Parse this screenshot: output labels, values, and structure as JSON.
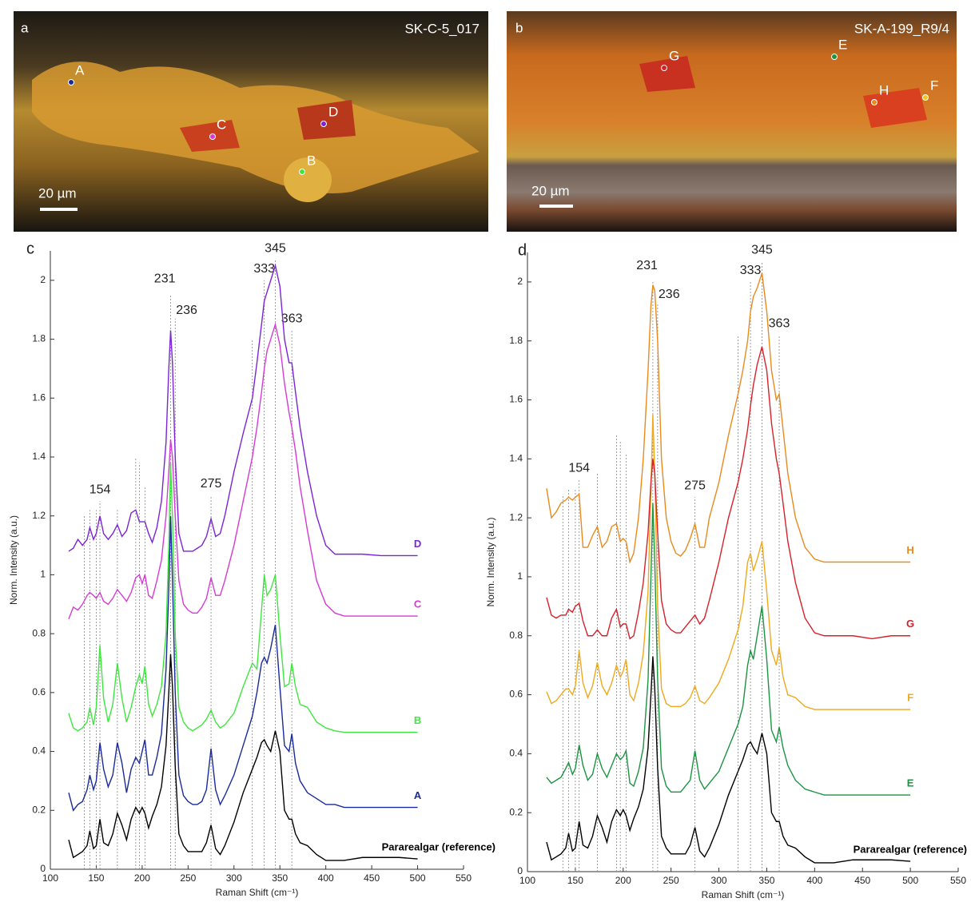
{
  "micrographs": [
    {
      "panel": "a",
      "sample": "SK-C-5_017",
      "scale": "20 µm",
      "points": [
        "A",
        "B",
        "C",
        "D"
      ]
    },
    {
      "panel": "b",
      "sample": "SK-A-199_R9/4",
      "scale": "20 µm",
      "points": [
        "G",
        "E",
        "H",
        "F"
      ]
    }
  ],
  "chart_data": [
    {
      "type": "line",
      "panel": "c",
      "xlabel": "Raman Shift (cm⁻¹)",
      "ylabel": "Norm. Intensity (a.u.)",
      "xlim": [
        100,
        550
      ],
      "ylim": [
        0,
        2.1
      ],
      "xticks": [
        100,
        150,
        200,
        250,
        300,
        350,
        400,
        450,
        500,
        550
      ],
      "yticks": [
        0,
        0.2,
        0.4,
        0.6,
        0.8,
        1,
        1.2,
        1.4,
        1.6,
        1.8,
        2
      ],
      "peak_lines": [
        {
          "x": 137,
          "top": 1.2
        },
        {
          "x": 143,
          "top": 1.22
        },
        {
          "x": 150,
          "top": 1.22
        },
        {
          "x": 154,
          "top": 1.25
        },
        {
          "x": 173,
          "top": 1.22
        },
        {
          "x": 193,
          "top": 1.4
        },
        {
          "x": 197,
          "top": 1.38
        },
        {
          "x": 203,
          "top": 1.3
        },
        {
          "x": 231,
          "top": 1.95
        },
        {
          "x": 236,
          "top": 1.87
        },
        {
          "x": 275,
          "top": 1.27
        },
        {
          "x": 320,
          "top": 1.8
        },
        {
          "x": 333,
          "top": 2.0
        },
        {
          "x": 345,
          "top": 2.07
        },
        {
          "x": 363,
          "top": 1.83
        }
      ],
      "peak_labels": [
        154,
        231,
        236,
        275,
        333,
        345,
        363
      ],
      "x": [
        120,
        125,
        130,
        135,
        140,
        143,
        147,
        150,
        154,
        158,
        163,
        168,
        173,
        178,
        183,
        188,
        193,
        197,
        200,
        203,
        207,
        211,
        216,
        221,
        226,
        229,
        231,
        233,
        236,
        240,
        245,
        250,
        255,
        260,
        265,
        270,
        275,
        280,
        285,
        290,
        300,
        310,
        320,
        325,
        330,
        333,
        336,
        340,
        345,
        350,
        355,
        360,
        363,
        367,
        372,
        380,
        390,
        400,
        410,
        420,
        440,
        460,
        480,
        500
      ],
      "series": [
        {
          "name": "Pararealgar (reference)",
          "color": "#000000",
          "values": [
            0.1,
            0.04,
            0.05,
            0.06,
            0.08,
            0.13,
            0.07,
            0.08,
            0.17,
            0.09,
            0.08,
            0.12,
            0.19,
            0.15,
            0.1,
            0.17,
            0.21,
            0.19,
            0.21,
            0.19,
            0.14,
            0.18,
            0.22,
            0.28,
            0.42,
            0.6,
            0.73,
            0.62,
            0.35,
            0.12,
            0.08,
            0.06,
            0.06,
            0.06,
            0.06,
            0.09,
            0.15,
            0.07,
            0.05,
            0.08,
            0.16,
            0.26,
            0.34,
            0.38,
            0.43,
            0.44,
            0.42,
            0.4,
            0.47,
            0.4,
            0.2,
            0.17,
            0.17,
            0.12,
            0.09,
            0.08,
            0.05,
            0.03,
            0.03,
            0.03,
            0.04,
            0.04,
            0.04,
            0.035
          ]
        },
        {
          "name": "A",
          "color": "#1a2a99",
          "values": [
            0.26,
            0.2,
            0.22,
            0.23,
            0.27,
            0.32,
            0.27,
            0.3,
            0.43,
            0.34,
            0.28,
            0.32,
            0.43,
            0.36,
            0.26,
            0.34,
            0.38,
            0.36,
            0.4,
            0.44,
            0.32,
            0.32,
            0.38,
            0.46,
            0.68,
            0.95,
            1.2,
            0.98,
            0.6,
            0.32,
            0.25,
            0.23,
            0.22,
            0.22,
            0.23,
            0.27,
            0.41,
            0.27,
            0.22,
            0.25,
            0.32,
            0.42,
            0.52,
            0.6,
            0.7,
            0.72,
            0.7,
            0.75,
            0.83,
            0.62,
            0.42,
            0.4,
            0.46,
            0.36,
            0.3,
            0.26,
            0.24,
            0.22,
            0.22,
            0.21,
            0.21,
            0.21,
            0.21,
            0.21
          ]
        },
        {
          "name": "B",
          "color": "#3ee63e",
          "values": [
            0.53,
            0.48,
            0.47,
            0.48,
            0.5,
            0.55,
            0.49,
            0.55,
            0.76,
            0.58,
            0.5,
            0.56,
            0.7,
            0.58,
            0.5,
            0.55,
            0.62,
            0.66,
            0.63,
            0.69,
            0.56,
            0.52,
            0.56,
            0.62,
            0.8,
            1.1,
            1.38,
            1.2,
            0.8,
            0.55,
            0.5,
            0.48,
            0.47,
            0.48,
            0.49,
            0.51,
            0.54,
            0.5,
            0.48,
            0.49,
            0.53,
            0.62,
            0.7,
            0.68,
            0.88,
            1.0,
            0.93,
            0.95,
            1.0,
            0.8,
            0.62,
            0.63,
            0.7,
            0.62,
            0.56,
            0.55,
            0.5,
            0.48,
            0.47,
            0.465,
            0.465,
            0.465,
            0.465,
            0.465
          ]
        },
        {
          "name": "C",
          "color": "#d63ad6",
          "values": [
            0.85,
            0.89,
            0.88,
            0.9,
            0.93,
            0.94,
            0.93,
            0.92,
            0.94,
            0.91,
            0.9,
            0.92,
            0.95,
            0.93,
            0.91,
            0.94,
            0.99,
            1.0,
            0.97,
            1.0,
            0.93,
            0.92,
            0.98,
            1.05,
            1.2,
            1.35,
            1.46,
            1.4,
            1.2,
            0.98,
            0.9,
            0.88,
            0.87,
            0.87,
            0.89,
            0.92,
            0.99,
            0.93,
            0.93,
            0.98,
            1.1,
            1.25,
            1.4,
            1.5,
            1.62,
            1.7,
            1.76,
            1.8,
            1.85,
            1.78,
            1.65,
            1.55,
            1.5,
            1.42,
            1.3,
            1.15,
            0.98,
            0.9,
            0.87,
            0.86,
            0.86,
            0.86,
            0.86,
            0.86
          ]
        },
        {
          "name": "D",
          "color": "#7a24d6",
          "values": [
            1.08,
            1.09,
            1.12,
            1.1,
            1.12,
            1.16,
            1.12,
            1.14,
            1.2,
            1.14,
            1.12,
            1.14,
            1.17,
            1.13,
            1.15,
            1.21,
            1.22,
            1.18,
            1.18,
            1.18,
            1.14,
            1.11,
            1.16,
            1.25,
            1.45,
            1.7,
            1.83,
            1.72,
            1.4,
            1.14,
            1.08,
            1.08,
            1.08,
            1.09,
            1.1,
            1.13,
            1.19,
            1.13,
            1.14,
            1.2,
            1.35,
            1.48,
            1.6,
            1.72,
            1.85,
            1.93,
            1.96,
            2.0,
            2.05,
            1.98,
            1.8,
            1.72,
            1.72,
            1.62,
            1.5,
            1.35,
            1.2,
            1.1,
            1.07,
            1.07,
            1.07,
            1.065,
            1.065,
            1.065
          ]
        }
      ]
    },
    {
      "type": "line",
      "panel": "d",
      "xlabel": "Raman Shift (cm⁻¹)",
      "ylabel": "Norm. Intensity (a.u.)",
      "xlim": [
        100,
        550
      ],
      "ylim": [
        0,
        2.1
      ],
      "xticks": [
        100,
        150,
        200,
        250,
        300,
        350,
        400,
        450,
        500,
        550
      ],
      "yticks": [
        0,
        0.2,
        0.4,
        0.6,
        0.8,
        1,
        1.2,
        1.4,
        1.6,
        1.8,
        2
      ],
      "peak_lines": [
        {
          "x": 137,
          "top": 1.28
        },
        {
          "x": 143,
          "top": 1.3
        },
        {
          "x": 150,
          "top": 1.3
        },
        {
          "x": 154,
          "top": 1.33
        },
        {
          "x": 173,
          "top": 1.35
        },
        {
          "x": 193,
          "top": 1.48
        },
        {
          "x": 197,
          "top": 1.46
        },
        {
          "x": 203,
          "top": 1.42
        },
        {
          "x": 231,
          "top": 2.0
        },
        {
          "x": 236,
          "top": 1.93
        },
        {
          "x": 275,
          "top": 1.27
        },
        {
          "x": 320,
          "top": 1.82
        },
        {
          "x": 333,
          "top": 2.0
        },
        {
          "x": 345,
          "top": 2.07
        },
        {
          "x": 363,
          "top": 1.82
        }
      ],
      "peak_labels": [
        154,
        231,
        236,
        275,
        333,
        345,
        363
      ],
      "x": [
        120,
        125,
        130,
        135,
        140,
        143,
        147,
        150,
        154,
        158,
        163,
        168,
        173,
        178,
        183,
        188,
        193,
        197,
        200,
        203,
        207,
        211,
        216,
        221,
        226,
        229,
        231,
        233,
        236,
        240,
        245,
        250,
        255,
        260,
        265,
        270,
        275,
        280,
        285,
        290,
        300,
        310,
        320,
        325,
        330,
        333,
        336,
        340,
        345,
        350,
        355,
        360,
        363,
        367,
        372,
        380,
        390,
        400,
        410,
        420,
        440,
        460,
        480,
        500
      ],
      "series": [
        {
          "name": "Pararealgar (reference)",
          "color": "#000000",
          "values": [
            0.1,
            0.04,
            0.05,
            0.06,
            0.08,
            0.13,
            0.07,
            0.08,
            0.17,
            0.09,
            0.08,
            0.12,
            0.19,
            0.15,
            0.1,
            0.17,
            0.21,
            0.19,
            0.21,
            0.19,
            0.14,
            0.18,
            0.22,
            0.28,
            0.42,
            0.6,
            0.73,
            0.62,
            0.35,
            0.12,
            0.08,
            0.06,
            0.06,
            0.06,
            0.06,
            0.09,
            0.15,
            0.07,
            0.05,
            0.08,
            0.16,
            0.26,
            0.34,
            0.38,
            0.43,
            0.44,
            0.42,
            0.4,
            0.47,
            0.4,
            0.2,
            0.17,
            0.17,
            0.12,
            0.09,
            0.08,
            0.05,
            0.03,
            0.03,
            0.03,
            0.04,
            0.04,
            0.04,
            0.035
          ]
        },
        {
          "name": "E",
          "color": "#1a9440",
          "values": [
            0.32,
            0.3,
            0.31,
            0.32,
            0.35,
            0.37,
            0.33,
            0.35,
            0.43,
            0.36,
            0.31,
            0.33,
            0.4,
            0.35,
            0.32,
            0.36,
            0.4,
            0.38,
            0.39,
            0.41,
            0.3,
            0.29,
            0.34,
            0.42,
            0.65,
            1.0,
            1.25,
            1.05,
            0.65,
            0.35,
            0.29,
            0.27,
            0.27,
            0.27,
            0.29,
            0.31,
            0.41,
            0.31,
            0.28,
            0.3,
            0.34,
            0.42,
            0.5,
            0.56,
            0.7,
            0.75,
            0.72,
            0.8,
            0.9,
            0.72,
            0.48,
            0.44,
            0.49,
            0.42,
            0.36,
            0.31,
            0.28,
            0.27,
            0.26,
            0.26,
            0.26,
            0.26,
            0.26,
            0.26
          ]
        },
        {
          "name": "F",
          "color": "#f0a81c",
          "values": [
            0.61,
            0.57,
            0.58,
            0.6,
            0.62,
            0.62,
            0.6,
            0.63,
            0.75,
            0.64,
            0.59,
            0.63,
            0.71,
            0.63,
            0.6,
            0.64,
            0.7,
            0.66,
            0.68,
            0.72,
            0.6,
            0.58,
            0.64,
            0.74,
            0.95,
            1.3,
            1.55,
            1.35,
            0.9,
            0.62,
            0.57,
            0.56,
            0.56,
            0.56,
            0.57,
            0.59,
            0.63,
            0.58,
            0.57,
            0.59,
            0.64,
            0.72,
            0.82,
            0.9,
            1.05,
            1.08,
            1.02,
            1.06,
            1.12,
            0.95,
            0.75,
            0.7,
            0.76,
            0.66,
            0.6,
            0.59,
            0.56,
            0.55,
            0.55,
            0.55,
            0.55,
            0.55,
            0.55,
            0.55
          ]
        },
        {
          "name": "G",
          "color": "#d6202a",
          "values": [
            0.93,
            0.87,
            0.86,
            0.87,
            0.87,
            0.89,
            0.88,
            0.9,
            0.91,
            0.85,
            0.8,
            0.8,
            0.82,
            0.8,
            0.8,
            0.86,
            0.89,
            0.83,
            0.84,
            0.84,
            0.79,
            0.8,
            0.88,
            0.98,
            1.15,
            1.32,
            1.4,
            1.35,
            1.15,
            0.92,
            0.84,
            0.82,
            0.81,
            0.81,
            0.83,
            0.85,
            0.87,
            0.84,
            0.86,
            0.92,
            1.05,
            1.2,
            1.32,
            1.4,
            1.5,
            1.58,
            1.65,
            1.72,
            1.78,
            1.7,
            1.52,
            1.4,
            1.35,
            1.25,
            1.12,
            0.98,
            0.86,
            0.81,
            0.8,
            0.8,
            0.8,
            0.79,
            0.8,
            0.8
          ]
        },
        {
          "name": "H",
          "color": "#e88a1e",
          "values": [
            1.3,
            1.2,
            1.22,
            1.25,
            1.26,
            1.27,
            1.26,
            1.27,
            1.28,
            1.1,
            1.1,
            1.14,
            1.17,
            1.1,
            1.12,
            1.17,
            1.18,
            1.12,
            1.13,
            1.12,
            1.05,
            1.08,
            1.2,
            1.4,
            1.7,
            1.92,
            1.99,
            1.97,
            1.8,
            1.4,
            1.2,
            1.12,
            1.08,
            1.07,
            1.09,
            1.13,
            1.18,
            1.1,
            1.1,
            1.2,
            1.32,
            1.48,
            1.62,
            1.7,
            1.8,
            1.9,
            1.95,
            1.98,
            2.03,
            1.9,
            1.7,
            1.6,
            1.62,
            1.5,
            1.35,
            1.2,
            1.1,
            1.06,
            1.05,
            1.05,
            1.05,
            1.05,
            1.05,
            1.05
          ]
        }
      ]
    }
  ]
}
